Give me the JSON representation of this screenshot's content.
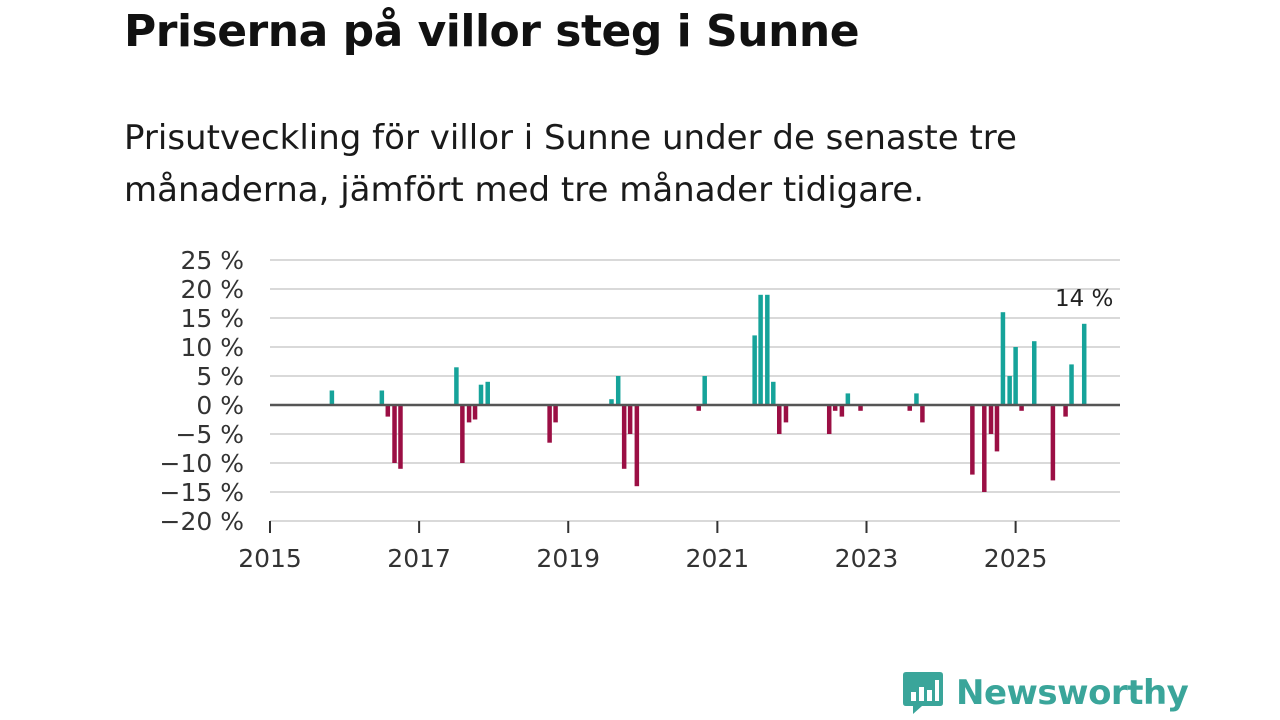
{
  "title": "Priserna på villor steg i Sunne",
  "subtitle": "Prisutveckling för villor i Sunne under de senaste tre månaderna, jämfört med tre månader tidigare.",
  "brand": {
    "name": "Newsworthy",
    "icon": "bar-chart-speech-bubble-icon"
  },
  "colors": {
    "positive": "#16a39a",
    "negative": "#9b0f44",
    "grid": "#d9d9d9",
    "zero": "#555555"
  },
  "chart_data": {
    "type": "bar",
    "title": "Priserna på villor steg i Sunne",
    "xlabel": "",
    "ylabel": "",
    "xlim": [
      2015.0,
      2026.4
    ],
    "ylim": [
      -20,
      25
    ],
    "y_ticks": [
      25,
      20,
      15,
      10,
      5,
      0,
      -5,
      -10,
      -15,
      -20
    ],
    "y_tick_labels": [
      "25 %",
      "20 %",
      "15 %",
      "10 %",
      "5 %",
      "0 %",
      "−5 %",
      "−10 %",
      "−15 %",
      "−20 %"
    ],
    "x_ticks": [
      2015,
      2017,
      2019,
      2021,
      2023,
      2025
    ],
    "x_tick_labels": [
      "2015",
      "2017",
      "2019",
      "2021",
      "2023",
      "2025"
    ],
    "grid": true,
    "annotation": {
      "text": "14 %",
      "x": 2025.92,
      "y": 14
    },
    "points": [
      {
        "x": 2015.83,
        "y": 2.5
      },
      {
        "x": 2016.5,
        "y": 2.5
      },
      {
        "x": 2016.58,
        "y": -2
      },
      {
        "x": 2016.67,
        "y": -10
      },
      {
        "x": 2016.75,
        "y": -11
      },
      {
        "x": 2017.5,
        "y": 6.5
      },
      {
        "x": 2017.58,
        "y": -10
      },
      {
        "x": 2017.67,
        "y": -3
      },
      {
        "x": 2017.75,
        "y": -2.5
      },
      {
        "x": 2017.83,
        "y": 3.5
      },
      {
        "x": 2017.92,
        "y": 4
      },
      {
        "x": 2018.75,
        "y": -6.5
      },
      {
        "x": 2018.83,
        "y": -3
      },
      {
        "x": 2019.58,
        "y": 1
      },
      {
        "x": 2019.67,
        "y": 5
      },
      {
        "x": 2019.75,
        "y": -11
      },
      {
        "x": 2019.83,
        "y": -5
      },
      {
        "x": 2019.92,
        "y": -14
      },
      {
        "x": 2020.75,
        "y": -1
      },
      {
        "x": 2020.83,
        "y": 5
      },
      {
        "x": 2021.5,
        "y": 12
      },
      {
        "x": 2021.58,
        "y": 19
      },
      {
        "x": 2021.67,
        "y": 19
      },
      {
        "x": 2021.75,
        "y": 4
      },
      {
        "x": 2021.83,
        "y": -5
      },
      {
        "x": 2021.92,
        "y": -3
      },
      {
        "x": 2022.5,
        "y": -5
      },
      {
        "x": 2022.58,
        "y": -1
      },
      {
        "x": 2022.67,
        "y": -2
      },
      {
        "x": 2022.75,
        "y": 2
      },
      {
        "x": 2022.92,
        "y": -1
      },
      {
        "x": 2023.58,
        "y": -1
      },
      {
        "x": 2023.67,
        "y": 2
      },
      {
        "x": 2023.75,
        "y": -3
      },
      {
        "x": 2024.42,
        "y": -12
      },
      {
        "x": 2024.58,
        "y": -15
      },
      {
        "x": 2024.67,
        "y": -5
      },
      {
        "x": 2024.75,
        "y": -8
      },
      {
        "x": 2024.83,
        "y": 16
      },
      {
        "x": 2024.92,
        "y": 5
      },
      {
        "x": 2025.0,
        "y": 10
      },
      {
        "x": 2025.08,
        "y": -1
      },
      {
        "x": 2025.25,
        "y": 11
      },
      {
        "x": 2025.5,
        "y": -13
      },
      {
        "x": 2025.67,
        "y": -2
      },
      {
        "x": 2025.75,
        "y": 7
      },
      {
        "x": 2025.92,
        "y": 14
      }
    ]
  }
}
